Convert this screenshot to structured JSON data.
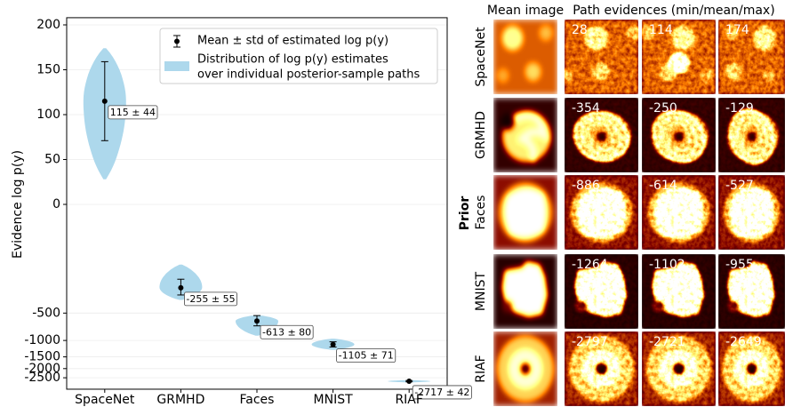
{
  "chart_data": {
    "type": "violin",
    "ylabel": "Evidence log p(y)",
    "categories": [
      "SpaceNet",
      "GRMHD",
      "Faces",
      "MNIST",
      "RIAF"
    ],
    "means": [
      115,
      -255,
      -613,
      -1105,
      -2717
    ],
    "stds": [
      44,
      55,
      80,
      71,
      42
    ],
    "value_labels": [
      "115 ± 44",
      "-255 ± 55",
      "-613 ± 80",
      "-1105 ± 71",
      "-2717 ± 42"
    ],
    "path_min": [
      28,
      -354,
      -886,
      -1264,
      -2797
    ],
    "path_mean": [
      114,
      -250,
      -614,
      -1102,
      -2721
    ],
    "path_max": [
      174,
      -129,
      -527,
      -955,
      -2649
    ],
    "ylim": [
      -3300,
      208
    ],
    "yticks": [
      200,
      150,
      100,
      50,
      0,
      -500,
      -1000,
      -1500,
      -2000,
      -2500
    ],
    "yscale": "symlog",
    "grid": true,
    "violin_color": "#add8ec",
    "legend": {
      "errorbar": "Mean ± std of estimated log p(y)",
      "violin": [
        "Distribution of log p(y) estimates",
        "over individual posterior-sample paths"
      ]
    },
    "legend_loc": "upper right"
  },
  "image_grid": {
    "col_headers": [
      "Mean image",
      "Path evidences (min/mean/max)"
    ],
    "row_axis_label": "Prior"
  }
}
